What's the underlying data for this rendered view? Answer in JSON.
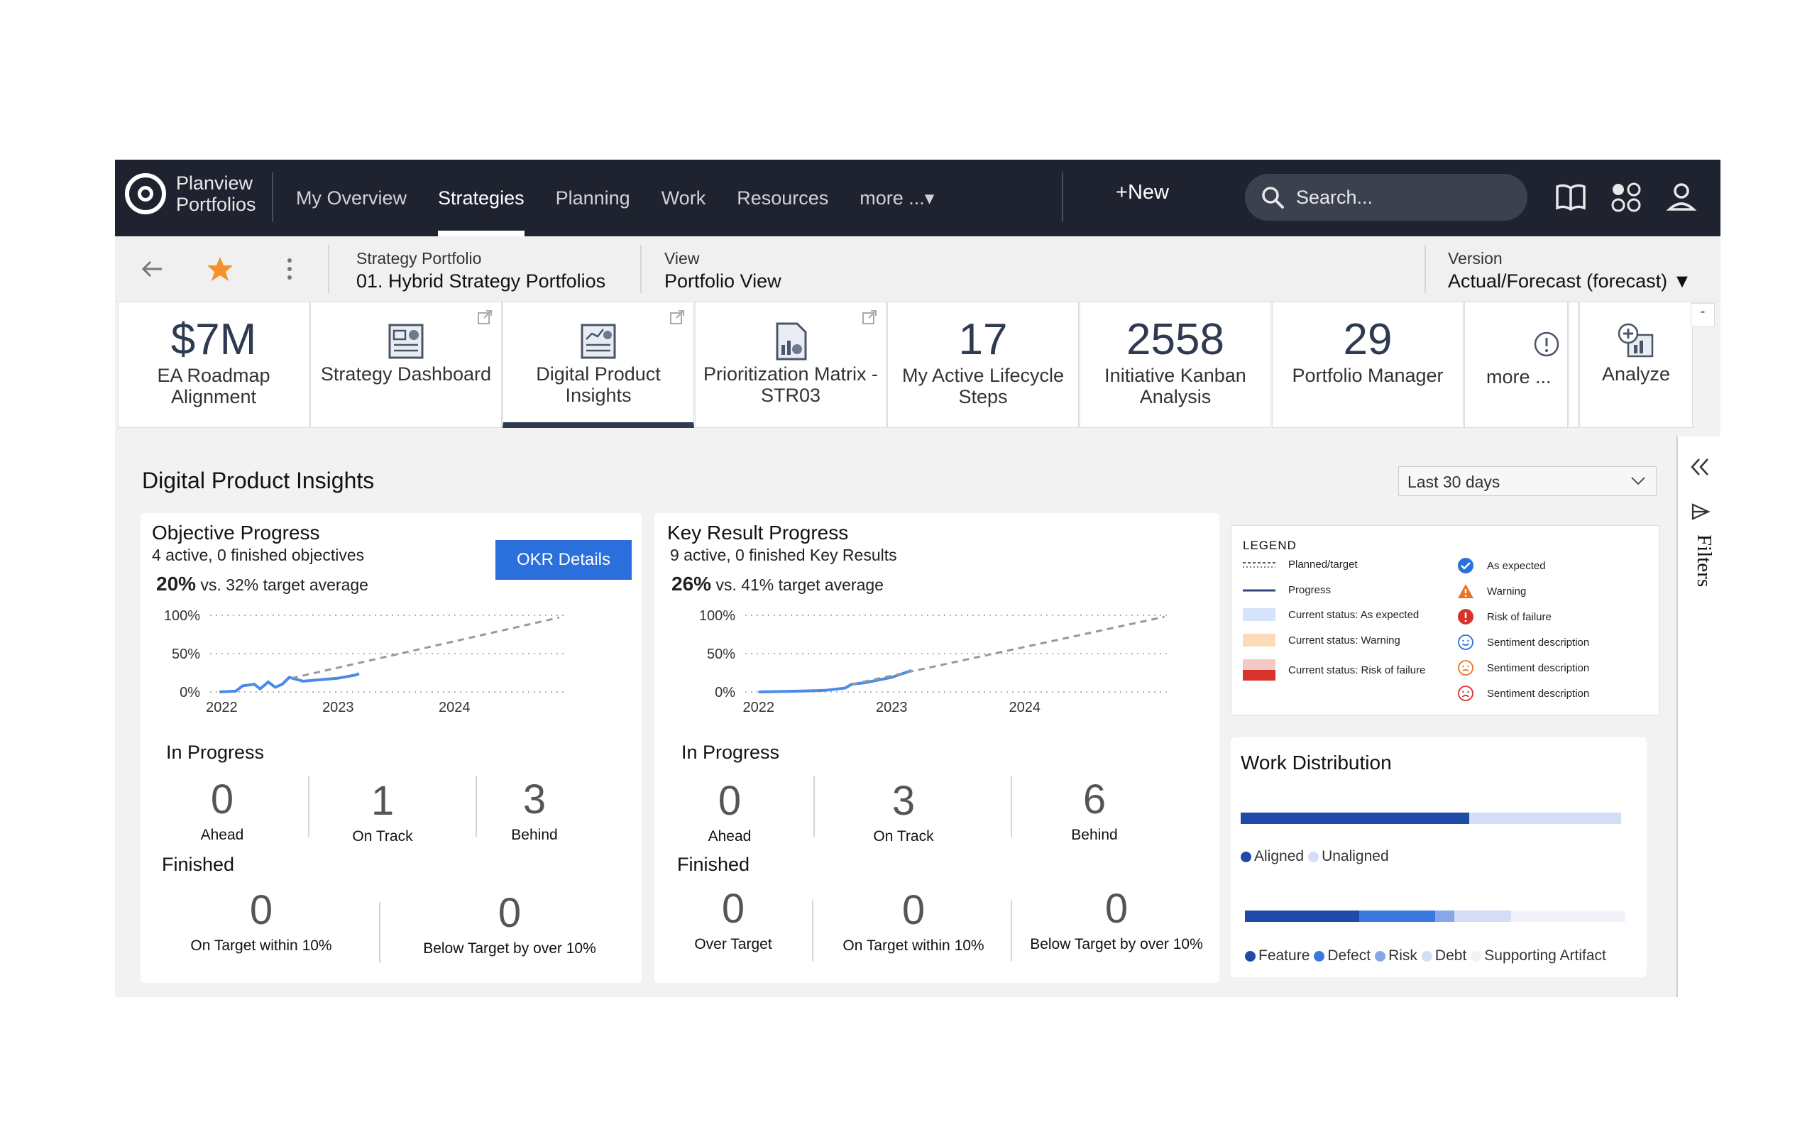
{
  "topbar": {
    "logo_line1": "Planview",
    "logo_line2": "Portfolios",
    "nav": [
      "My Overview",
      "Strategies",
      "Planning",
      "Work",
      "Resources",
      "more ...▾"
    ],
    "active_nav": "Strategies",
    "new_label": "New",
    "search_placeholder": "Search..."
  },
  "context": {
    "portfolio_label": "Strategy Portfolio",
    "portfolio_value": "01. Hybrid Strategy Portfolios",
    "view_label": "View",
    "view_value": "Portfolio View",
    "version_label": "Version",
    "version_value": "Actual/Forecast (forecast) ▼",
    "collapse_label": "-"
  },
  "tiles": {
    "ea": {
      "value": "$7M",
      "label": "EA Roadmap Alignment"
    },
    "strategy": {
      "label": "Strategy Dashboard"
    },
    "dpi": {
      "label": "Digital Product Insights"
    },
    "prio": {
      "label": "Prioritization Matrix - STR03"
    },
    "lifecycle": {
      "value": "17",
      "label": "My Active Lifecycle Steps"
    },
    "kanban": {
      "value": "2558",
      "label": "Initiative Kanban Analysis"
    },
    "pm": {
      "value": "29",
      "label": "Portfolio Manager"
    },
    "more": {
      "label": "more ..."
    },
    "analyze": {
      "label": "Analyze"
    }
  },
  "main": {
    "title": "Digital Product Insights",
    "range": "Last 30 days"
  },
  "objective": {
    "title": "Objective Progress",
    "subtitle": "4 active, 0 finished objectives",
    "pct": "20%",
    "pct_text": "vs. 32% target average",
    "button": "OKR Details",
    "in_progress_title": "In Progress",
    "finished_title": "Finished",
    "in_progress": [
      {
        "value": "0",
        "label": "Ahead"
      },
      {
        "value": "1",
        "label": "On Track"
      },
      {
        "value": "3",
        "label": "Behind"
      }
    ],
    "finished": [
      {
        "value": "0",
        "label": "On Target within 10%"
      },
      {
        "value": "0",
        "label": "Below Target by over 10%"
      }
    ]
  },
  "keyresult": {
    "title": "Key Result Progress",
    "subtitle": "9 active, 0 finished Key Results",
    "pct": "26%",
    "pct_text": "vs. 41% target average",
    "in_progress_title": "In Progress",
    "finished_title": "Finished",
    "in_progress": [
      {
        "value": "0",
        "label": "Ahead"
      },
      {
        "value": "3",
        "label": "On Track"
      },
      {
        "value": "6",
        "label": "Behind"
      }
    ],
    "finished": [
      {
        "value": "0",
        "label": "Over Target"
      },
      {
        "value": "0",
        "label": "On Target within 10%"
      },
      {
        "value": "0",
        "label": "Below Target by over 10%"
      }
    ]
  },
  "chart_data": [
    {
      "type": "line",
      "yticks": [
        "100%",
        "50%",
        "0%"
      ],
      "xticks": [
        "2022",
        "2023",
        "2024"
      ],
      "ylim": [
        0,
        100
      ],
      "xlim": [
        2021.9,
        2024.95
      ],
      "grid": true,
      "series": [
        {
          "values": [
            [
              2021.98,
              0
            ],
            [
              2022.12,
              1
            ],
            [
              2022.18,
              8
            ],
            [
              2022.28,
              10
            ],
            [
              2022.33,
              4
            ],
            [
              2022.4,
              13
            ],
            [
              2022.46,
              6
            ],
            [
              2022.52,
              10
            ],
            [
              2022.58,
              19
            ],
            [
              2022.7,
              14
            ],
            [
              2022.85,
              16
            ],
            [
              2023.0,
              18
            ],
            [
              2023.15,
              22
            ],
            [
              2023.18,
              24
            ]
          ]
        },
        {
          "values": [
            [
              2022.6,
              18
            ],
            [
              2024.9,
              97
            ]
          ]
        }
      ]
    },
    {
      "type": "line",
      "yticks": [
        "100%",
        "50%",
        "0%"
      ],
      "xticks": [
        "2022",
        "2023",
        "2024"
      ],
      "ylim": [
        0,
        100
      ],
      "xlim": [
        2021.9,
        2025.1
      ],
      "grid": true,
      "series": [
        {
          "values": [
            [
              2022.0,
              0
            ],
            [
              2022.3,
              1
            ],
            [
              2022.5,
              2
            ],
            [
              2022.65,
              5
            ],
            [
              2022.7,
              10
            ],
            [
              2022.8,
              12
            ],
            [
              2023.0,
              19
            ],
            [
              2023.15,
              28
            ]
          ]
        },
        {
          "values": [
            [
              2022.7,
              10
            ],
            [
              2025.05,
              98
            ]
          ]
        }
      ]
    }
  ],
  "legend": {
    "title": "LEGEND",
    "left": [
      "Planned/target",
      "Progress",
      "Current status: As expected",
      "Current status: Warning",
      "Current status: Risk of failure"
    ],
    "right": [
      "As expected",
      "Warning",
      "Risk of failure",
      "Sentiment description",
      "Sentiment description",
      "Sentiment description"
    ]
  },
  "work_distribution": {
    "title": "Work Distribution",
    "alignment": [
      {
        "name": "Aligned",
        "value": 60,
        "color": "#1f4aa8"
      },
      {
        "name": "Unaligned",
        "value": 40,
        "color": "#d3def6"
      }
    ],
    "types": [
      {
        "name": "Feature",
        "value": 30,
        "color": "#1f4aa8"
      },
      {
        "name": "Defect",
        "value": 20,
        "color": "#3a78e0"
      },
      {
        "name": "Risk",
        "value": 5,
        "color": "#86a8e8"
      },
      {
        "name": "Debt",
        "value": 15,
        "color": "#d3def6"
      },
      {
        "name": "Supporting Artifact",
        "value": 30,
        "color": "#f1f3f8"
      }
    ]
  },
  "filters": {
    "label": "Filters"
  }
}
